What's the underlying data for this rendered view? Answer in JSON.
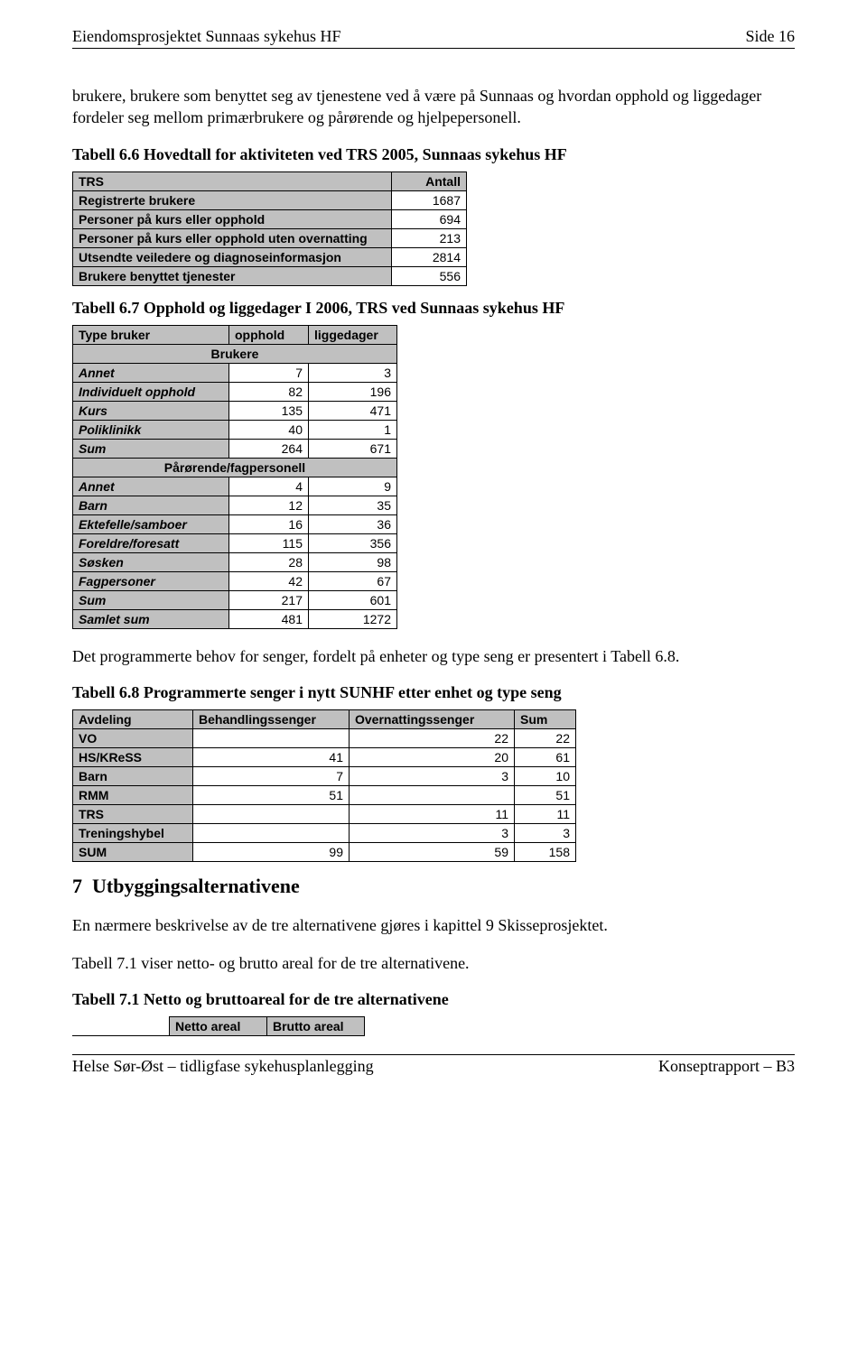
{
  "header": {
    "left": "Eiendomsprosjektet Sunnaas sykehus HF",
    "right": "Side 16"
  },
  "para1": "brukere, brukere som benyttet seg av tjenestene ved å være på Sunnaas og hvordan opphold og liggedager fordeler seg mellom primærbrukere og pårørende og hjelpepersonell.",
  "table66": {
    "caption": "Tabell 6.6 Hovedtall for aktiviteten ved TRS 2005, Sunnaas sykehus HF",
    "h1": "TRS",
    "h2": "Antall",
    "rows": [
      {
        "label": "Registrerte brukere",
        "val": "1687"
      },
      {
        "label": "Personer på kurs eller opphold",
        "val": "694"
      },
      {
        "label": "Personer på kurs eller opphold uten overnatting",
        "val": "213"
      },
      {
        "label": "Utsendte veiledere og diagnoseinformasjon",
        "val": "2814"
      },
      {
        "label": "Brukere benyttet tjenester",
        "val": "556"
      }
    ]
  },
  "table67": {
    "caption": "Tabell 6.7 Opphold og liggedager I 2006, TRS ved Sunnaas sykehus HF",
    "h1": "Type bruker",
    "h2": "opphold",
    "h3": "liggedager",
    "sub1": "Brukere",
    "rowsA": [
      {
        "label": "Annet",
        "v1": "7",
        "v2": "3"
      },
      {
        "label": "Individuelt opphold",
        "v1": "82",
        "v2": "196"
      },
      {
        "label": "Kurs",
        "v1": "135",
        "v2": "471"
      },
      {
        "label": "Poliklinikk",
        "v1": "40",
        "v2": "1"
      },
      {
        "label": "Sum",
        "v1": "264",
        "v2": "671"
      }
    ],
    "sub2": "Pårørende/fagpersonell",
    "rowsB": [
      {
        "label": "Annet",
        "v1": "4",
        "v2": "9"
      },
      {
        "label": "Barn",
        "v1": "12",
        "v2": "35"
      },
      {
        "label": "Ektefelle/samboer",
        "v1": "16",
        "v2": "36"
      },
      {
        "label": "Foreldre/foresatt",
        "v1": "115",
        "v2": "356"
      },
      {
        "label": "Søsken",
        "v1": "28",
        "v2": "98"
      },
      {
        "label": "Fagpersoner",
        "v1": "42",
        "v2": "67"
      },
      {
        "label": "Sum",
        "v1": "217",
        "v2": "601"
      },
      {
        "label": "Samlet sum",
        "v1": "481",
        "v2": "1272"
      }
    ]
  },
  "para2": "Det programmerte behov for senger, fordelt på enheter og type seng er presentert i Tabell 6.8.",
  "table68": {
    "caption": "Tabell 6.8 Programmerte senger i nytt SUNHF etter enhet og type seng",
    "h1": "Avdeling",
    "h2": "Behandlingssenger",
    "h3": "Overnattingssenger",
    "h4": "Sum",
    "rows": [
      {
        "label": "VO",
        "v1": "",
        "v2": "22",
        "v3": "22"
      },
      {
        "label": "HS/KReSS",
        "v1": "41",
        "v2": "20",
        "v3": "61"
      },
      {
        "label": "Barn",
        "v1": "7",
        "v2": "3",
        "v3": "10"
      },
      {
        "label": "RMM",
        "v1": "51",
        "v2": "",
        "v3": "51"
      },
      {
        "label": "TRS",
        "v1": "",
        "v2": "11",
        "v3": "11"
      },
      {
        "label": "Treningshybel",
        "v1": "",
        "v2": "3",
        "v3": "3"
      },
      {
        "label": "SUM",
        "v1": "99",
        "v2": "59",
        "v3": "158"
      }
    ]
  },
  "section7": {
    "num": "7",
    "title": "Utbyggingsalternativene"
  },
  "para3": "En nærmere beskrivelse av de tre alternativene gjøres i kapittel 9 Skisseprosjektet.",
  "para4": "Tabell 7.1 viser netto- og brutto areal for de tre alternativene.",
  "table71": {
    "caption": "Tabell 7.1 Netto og bruttoareal for de tre alternativene",
    "h1": "Netto areal",
    "h2": "Brutto areal"
  },
  "footer": {
    "left": "Helse Sør-Øst – tidligfase sykehusplanlegging",
    "right": "Konseptrapport – B3"
  }
}
